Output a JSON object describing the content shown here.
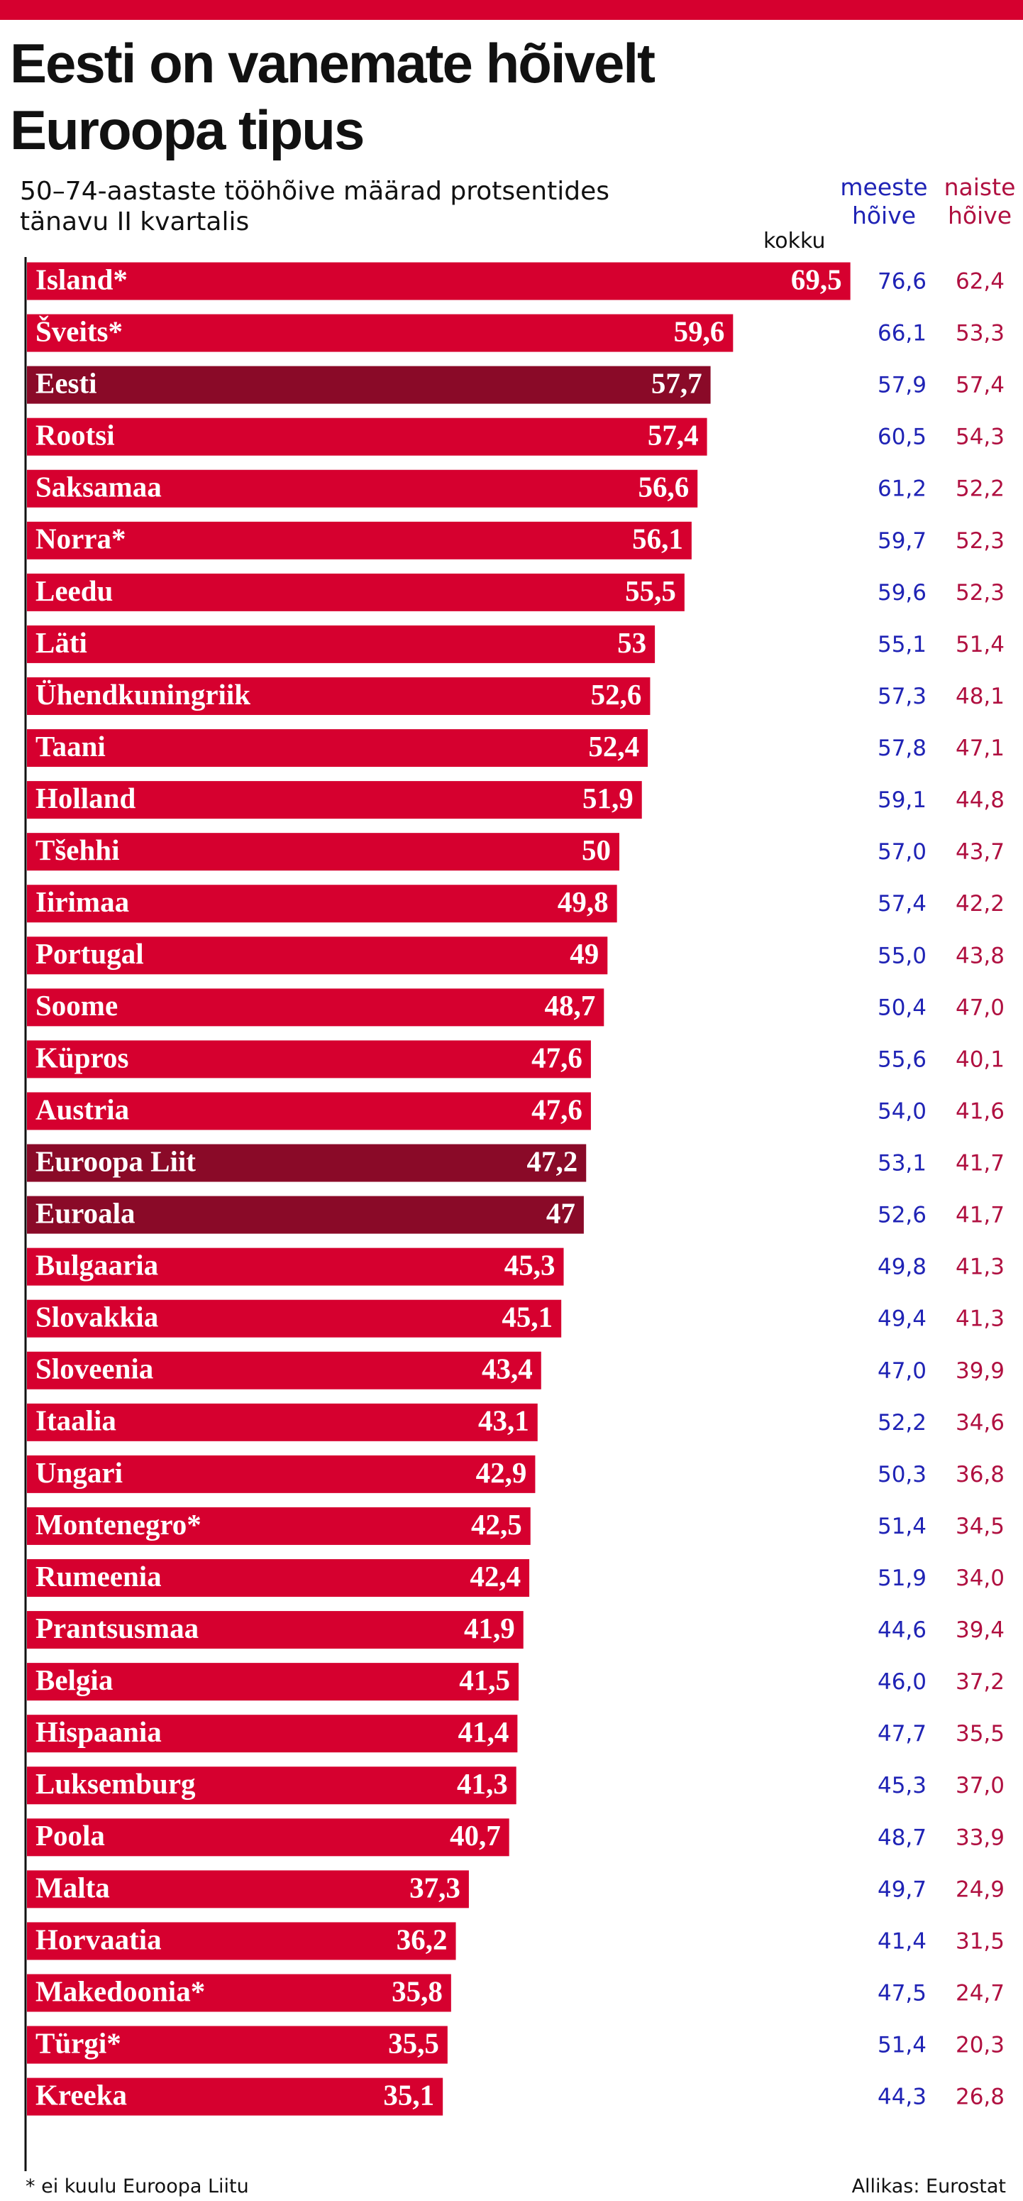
{
  "chart_data": {
    "type": "bar",
    "title": "Eesti on vanemate hõivelt Euroopa tipus",
    "subtitle": "50–74-aastaste tööhõive määrad protsentides tänavu II kvartalis",
    "footnote": "* ei kuulu Euroopa Liitu",
    "source": "Allikas: Eurostat",
    "categories": [
      "Island*",
      "Šveits*",
      "Eesti",
      "Rootsi",
      "Saksamaa",
      "Norra*",
      "Leedu",
      "Läti",
      "Ühendkuningriik",
      "Taani",
      "Holland",
      "Tšehhi",
      "Iirimaa",
      "Portugal",
      "Soome",
      "Küpros",
      "Austria",
      "Euroopa Liit",
      "Euroala",
      "Bulgaaria",
      "Slovakkia",
      "Sloveenia",
      "Itaalia",
      "Ungari",
      "Montenegro*",
      "Rumeenia",
      "Prantsusmaa",
      "Belgia",
      "Hispaania",
      "Luksemburg",
      "Poola",
      "Malta",
      "Horvaatia",
      "Makedoonia*",
      "Türgi*",
      "Kreeka"
    ],
    "series": [
      {
        "name": "kokku",
        "color": "#d6002f",
        "colors": [
          "#d6002f",
          "#d6002f",
          "#8a0a28",
          "#d6002f",
          "#d6002f",
          "#d6002f",
          "#d6002f",
          "#d6002f",
          "#d6002f",
          "#d6002f",
          "#d6002f",
          "#d6002f",
          "#d6002f",
          "#d6002f",
          "#d6002f",
          "#d6002f",
          "#d6002f",
          "#8a0a28",
          "#8a0a28",
          "#d6002f",
          "#d6002f",
          "#d6002f",
          "#d6002f",
          "#d6002f",
          "#d6002f",
          "#d6002f",
          "#d6002f",
          "#d6002f",
          "#d6002f",
          "#d6002f",
          "#d6002f",
          "#d6002f",
          "#d6002f",
          "#d6002f",
          "#d6002f",
          "#d6002f"
        ],
        "values": [
          69.5,
          59.6,
          57.7,
          57.4,
          56.6,
          56.1,
          55.5,
          53,
          52.6,
          52.4,
          51.9,
          50,
          49.8,
          49,
          48.7,
          47.6,
          47.6,
          47.2,
          47,
          45.3,
          45.1,
          43.4,
          43.1,
          42.9,
          42.5,
          42.4,
          41.9,
          41.5,
          41.4,
          41.3,
          40.7,
          37.3,
          36.2,
          35.8,
          35.5,
          35.1
        ],
        "value_labels": [
          "69,5",
          "59,6",
          "57,7",
          "57,4",
          "56,6",
          "56,1",
          "55,5",
          "53",
          "52,6",
          "52,4",
          "51,9",
          "50",
          "49,8",
          "49",
          "48,7",
          "47,6",
          "47,6",
          "47,2",
          "47",
          "45,3",
          "45,1",
          "43,4",
          "43,1",
          "42,9",
          "42,5",
          "42,4",
          "41,9",
          "41,5",
          "41,4",
          "41,3",
          "40,7",
          "37,3",
          "36,2",
          "35,8",
          "35,5",
          "35,1"
        ]
      },
      {
        "name": "meeste hõive",
        "color": "#1f23b5",
        "values": [
          76.6,
          66.1,
          57.9,
          60.5,
          61.2,
          59.7,
          59.6,
          55.1,
          57.3,
          57.8,
          59.1,
          57.0,
          57.4,
          55.0,
          50.4,
          55.6,
          54.0,
          53.1,
          52.6,
          49.8,
          49.4,
          47.0,
          52.2,
          50.3,
          51.4,
          51.9,
          44.6,
          46.0,
          47.7,
          45.3,
          48.7,
          49.7,
          41.4,
          47.5,
          51.4,
          44.3
        ],
        "value_labels": [
          "76,6",
          "66,1",
          "57,9",
          "60,5",
          "61,2",
          "59,7",
          "59,6",
          "55,1",
          "57,3",
          "57,8",
          "59,1",
          "57,0",
          "57,4",
          "55,0",
          "50,4",
          "55,6",
          "54,0",
          "53,1",
          "52,6",
          "49,8",
          "49,4",
          "47,0",
          "52,2",
          "50,3",
          "51,4",
          "51,9",
          "44,6",
          "46,0",
          "47,7",
          "45,3",
          "48,7",
          "49,7",
          "41,4",
          "47,5",
          "51,4",
          "44,3"
        ]
      },
      {
        "name": "naiste hõive",
        "color": "#b01040",
        "values": [
          62.4,
          53.3,
          57.4,
          54.3,
          52.2,
          52.3,
          52.3,
          51.4,
          48.1,
          47.1,
          44.8,
          43.7,
          42.2,
          43.8,
          47.0,
          40.1,
          41.6,
          41.7,
          41.7,
          41.3,
          41.3,
          39.9,
          34.6,
          36.8,
          34.5,
          34.0,
          39.4,
          37.2,
          35.5,
          37.0,
          33.9,
          24.9,
          31.5,
          24.7,
          20.3,
          26.8
        ],
        "value_labels": [
          "62,4",
          "53,3",
          "57,4",
          "54,3",
          "52,2",
          "52,3",
          "52,3",
          "51,4",
          "48,1",
          "47,1",
          "44,8",
          "43,7",
          "42,2",
          "43,8",
          "47,0",
          "40,1",
          "41,6",
          "41,7",
          "41,7",
          "41,3",
          "41,3",
          "39,9",
          "34,6",
          "36,8",
          "34,5",
          "34,0",
          "39,4",
          "37,2",
          "35,5",
          "37,0",
          "33,9",
          "24,9",
          "31,5",
          "24,7",
          "20,3",
          "26,8"
        ]
      }
    ]
  }
}
